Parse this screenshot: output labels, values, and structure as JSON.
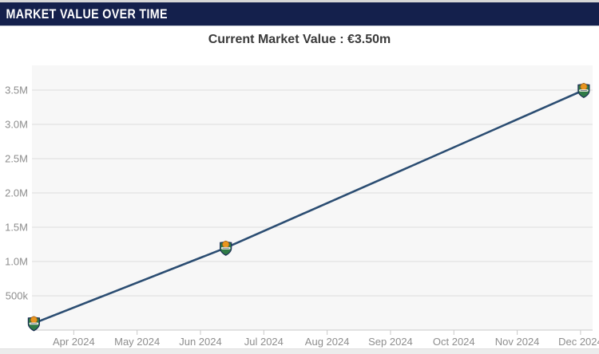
{
  "header": {
    "title": "MARKET VALUE OVER TIME"
  },
  "subtitle": "Current Market Value : €3.50m",
  "colors": {
    "header_bg": "#14204C",
    "top_strip": "#D7D7D7",
    "bottom_strip": "#ECECEC",
    "line": "#2B4D72",
    "plot_bg": "#F7F7F7",
    "grid": "#DDDDDD",
    "axis_line": "#C9C9C9",
    "tick": "#C8C8C8",
    "axis_label": "#8E8E8E",
    "subtitle_text": "#3A3A3A",
    "crest_green": "#2F7A46",
    "crest_orange": "#E8951F",
    "crest_navy": "#1C2F55",
    "crest_band": "#F1EEE3"
  },
  "chart_data": {
    "type": "line",
    "title": "MARKET VALUE OVER TIME",
    "subtitle": "Current Market Value : €3.50m",
    "x_tick_labels": [
      "Apr 2024",
      "May 2024",
      "Jun 2024",
      "Jul 2024",
      "Aug 2024",
      "Sep 2024",
      "Oct 2024",
      "Nov 2024",
      "Dec 2024"
    ],
    "x_tick_month_index": [
      0,
      1,
      2,
      3,
      4,
      5,
      6,
      7,
      8
    ],
    "y_ticks": [
      {
        "label": "500k",
        "value": 500000
      },
      {
        "label": "1.0M",
        "value": 1000000
      },
      {
        "label": "1.5M",
        "value": 1500000
      },
      {
        "label": "2.0M",
        "value": 2000000
      },
      {
        "label": "2.5M",
        "value": 2500000
      },
      {
        "label": "3.0M",
        "value": 3000000
      },
      {
        "label": "3.5M",
        "value": 3500000
      }
    ],
    "points": [
      {
        "date": "Mar 2024",
        "x_month": -0.63,
        "value": 100000
      },
      {
        "date": "Jun 2024",
        "x_month": 2.4,
        "value": 1200000
      },
      {
        "date": "Dec 2024",
        "x_month": 8.05,
        "value": 3500000
      }
    ],
    "x_month_range": [
      -0.66,
      8.19
    ],
    "y_range": [
      0,
      3860000
    ],
    "grid": true,
    "legend": false,
    "marker": "club-crest"
  }
}
